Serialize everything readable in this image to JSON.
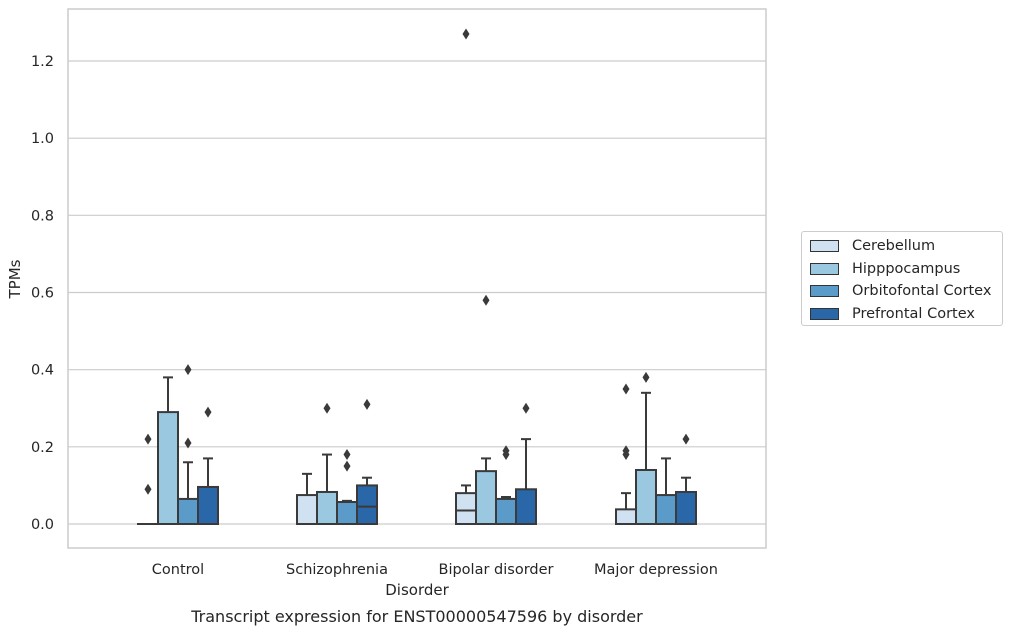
{
  "chart_data": {
    "type": "box",
    "title": "",
    "caption": "Transcript expression for ENST00000547596 by disorder",
    "xlabel": "Disorder",
    "ylabel": "TPMs",
    "ylim": [
      -0.06,
      1.34
    ],
    "yticks": [
      "0.0",
      "0.2",
      "0.4",
      "0.6",
      "0.8",
      "1.0",
      "1.2"
    ],
    "ytick_values": [
      0.0,
      0.2,
      0.4,
      0.6,
      0.8,
      1.0,
      1.2
    ],
    "grid": "horizontal",
    "legend_position": "right",
    "categories": [
      "Control",
      "Schizophrenia",
      "Bipolar disorder",
      "Major depression"
    ],
    "series": [
      {
        "name": "Cerebellum",
        "color": "#d0e1f2",
        "boxes": [
          {
            "category": "Control",
            "whisker_low": 0.0,
            "q1": 0.0,
            "median": 0.0,
            "q3": 0.0,
            "whisker_high": 0.0,
            "outliers": [
              0.22,
              0.09
            ]
          },
          {
            "category": "Schizophrenia",
            "whisker_low": 0.0,
            "q1": 0.0,
            "median": 0.0,
            "q3": 0.075,
            "whisker_high": 0.13,
            "outliers": []
          },
          {
            "category": "Bipolar disorder",
            "whisker_low": 0.0,
            "q1": 0.0,
            "median": 0.035,
            "q3": 0.08,
            "whisker_high": 0.1,
            "outliers": [
              1.27
            ]
          },
          {
            "category": "Major depression",
            "whisker_low": 0.0,
            "q1": 0.0,
            "median": 0.0,
            "q3": 0.038,
            "whisker_high": 0.08,
            "outliers": [
              0.35,
              0.19,
              0.18
            ]
          }
        ]
      },
      {
        "name": "Hipppocampus",
        "color": "#9ac8e0",
        "boxes": [
          {
            "category": "Control",
            "whisker_low": 0.0,
            "q1": 0.0,
            "median": 0.0,
            "q3": 0.29,
            "whisker_high": 0.38,
            "outliers": []
          },
          {
            "category": "Schizophrenia",
            "whisker_low": 0.0,
            "q1": 0.0,
            "median": 0.0,
            "q3": 0.083,
            "whisker_high": 0.18,
            "outliers": [
              0.3
            ]
          },
          {
            "category": "Bipolar disorder",
            "whisker_low": 0.0,
            "q1": 0.0,
            "median": 0.0,
            "q3": 0.137,
            "whisker_high": 0.17,
            "outliers": [
              0.58
            ]
          },
          {
            "category": "Major depression",
            "whisker_low": 0.0,
            "q1": 0.0,
            "median": 0.0,
            "q3": 0.14,
            "whisker_high": 0.34,
            "outliers": [
              0.38
            ]
          }
        ]
      },
      {
        "name": "Orbitofontal Cortex",
        "color": "#5a9bc9",
        "boxes": [
          {
            "category": "Control",
            "whisker_low": 0.0,
            "q1": 0.0,
            "median": 0.0,
            "q3": 0.065,
            "whisker_high": 0.16,
            "outliers": [
              0.4,
              0.21
            ]
          },
          {
            "category": "Schizophrenia",
            "whisker_low": 0.0,
            "q1": 0.0,
            "median": 0.0,
            "q3": 0.057,
            "whisker_high": 0.06,
            "outliers": [
              0.18,
              0.15
            ]
          },
          {
            "category": "Bipolar disorder",
            "whisker_low": 0.0,
            "q1": 0.0,
            "median": 0.0,
            "q3": 0.065,
            "whisker_high": 0.07,
            "outliers": [
              0.19,
              0.18
            ]
          },
          {
            "category": "Major depression",
            "whisker_low": 0.0,
            "q1": 0.0,
            "median": 0.0,
            "q3": 0.075,
            "whisker_high": 0.17,
            "outliers": []
          }
        ]
      },
      {
        "name": "Prefrontal Cortex",
        "color": "#2a67a8",
        "boxes": [
          {
            "category": "Control",
            "whisker_low": 0.0,
            "q1": 0.0,
            "median": 0.0,
            "q3": 0.096,
            "whisker_high": 0.17,
            "outliers": [
              0.29
            ]
          },
          {
            "category": "Schizophrenia",
            "whisker_low": 0.0,
            "q1": 0.0,
            "median": 0.045,
            "q3": 0.1,
            "whisker_high": 0.12,
            "outliers": [
              0.31
            ]
          },
          {
            "category": "Bipolar disorder",
            "whisker_low": 0.0,
            "q1": 0.0,
            "median": 0.0,
            "q3": 0.09,
            "whisker_high": 0.22,
            "outliers": [
              0.3
            ]
          },
          {
            "category": "Major depression",
            "whisker_low": 0.0,
            "q1": 0.0,
            "median": 0.0,
            "q3": 0.083,
            "whisker_high": 0.12,
            "outliers": [
              0.22
            ]
          }
        ]
      }
    ]
  }
}
